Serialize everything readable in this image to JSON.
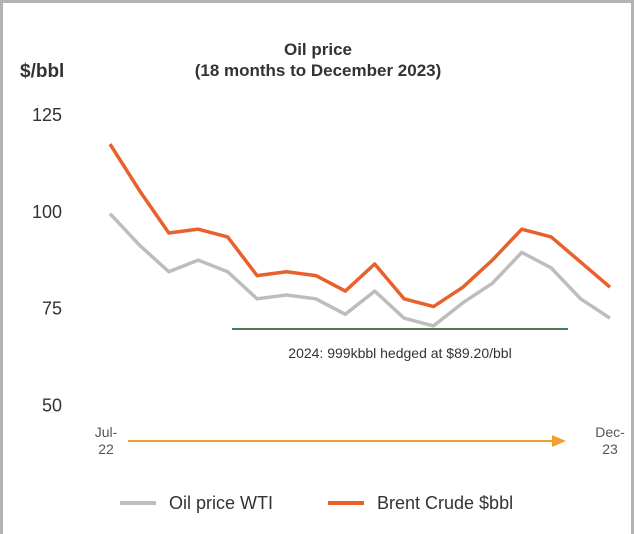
{
  "chart_data": {
    "type": "line",
    "title": "Oil price",
    "subtitle": "(18 months to December 2023)",
    "y_label": "$/bbl",
    "annotation": "2024: 999kbbl hedged at $89.20/bbl",
    "categories": [
      "Jul-\n22",
      null,
      null,
      null,
      null,
      null,
      null,
      null,
      null,
      null,
      null,
      null,
      null,
      null,
      null,
      null,
      null,
      "Dec-\n23"
    ],
    "series": [
      {
        "name": "Oil price WTI",
        "color": "#bdbdbd",
        "values": [
          99.5,
          91.4,
          84.5,
          87.5,
          84.5,
          77.5,
          78.5,
          77.5,
          73.5,
          79.5,
          72.5,
          70.5,
          76.5,
          81.5,
          89.5,
          85.5,
          77.5,
          72.5
        ]
      },
      {
        "name": "Brent Crude $bbl",
        "color": "#e8612c",
        "values": [
          117.5,
          105.5,
          94.5,
          95.5,
          93.5,
          83.5,
          84.5,
          83.5,
          79.5,
          86.5,
          77.5,
          75.5,
          80.5,
          87.5,
          95.5,
          93.5,
          87,
          80.5
        ]
      }
    ],
    "ylim": [
      45,
      125
    ],
    "yticks": [
      50,
      75,
      100,
      125
    ],
    "grid": false,
    "legend": "bottom"
  }
}
